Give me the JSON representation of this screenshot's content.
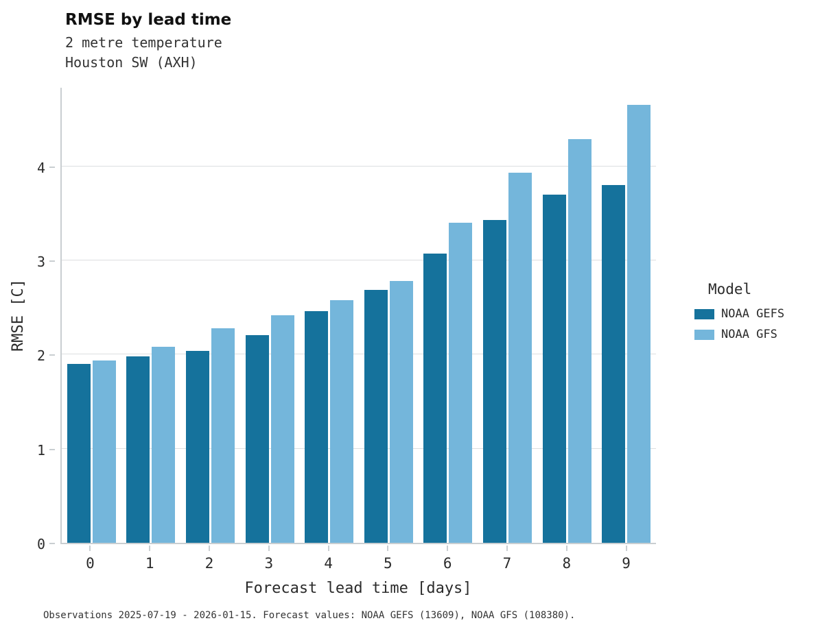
{
  "title": "RMSE by lead time",
  "subtitle_line1": "2 metre temperature",
  "subtitle_line2": "Houston SW (AXH)",
  "caption": "Observations 2025-07-19 - 2026-01-15. Forecast values: NOAA GEFS (13609), NOAA GFS (108380).",
  "legend": {
    "title": "Model",
    "entries": [
      {
        "label": "NOAA GEFS",
        "color": "#15729c"
      },
      {
        "label": "NOAA GFS",
        "color": "#74b6db"
      }
    ]
  },
  "colors": {
    "gefs": "#15729c",
    "gfs": "#74b6db",
    "grid": "#dcdee0",
    "axis": "#c9ced1",
    "text": "#2b2b2b"
  },
  "chart_data": {
    "type": "bar",
    "title": "RMSE by lead time",
    "subtitle": "2 metre temperature — Houston SW (AXH)",
    "xlabel": "Forecast lead time [days]",
    "ylabel": "RMSE [C]",
    "categories": [
      "0",
      "1",
      "2",
      "3",
      "4",
      "5",
      "6",
      "7",
      "8",
      "9"
    ],
    "series": [
      {
        "name": "NOAA GEFS",
        "color": "#15729c",
        "values": [
          1.9,
          1.98,
          2.04,
          2.21,
          2.46,
          2.69,
          3.07,
          3.43,
          3.7,
          3.8
        ]
      },
      {
        "name": "NOAA GFS",
        "color": "#74b6db",
        "values": [
          1.94,
          2.08,
          2.28,
          2.42,
          2.58,
          2.78,
          3.4,
          3.93,
          4.29,
          4.65
        ]
      }
    ],
    "yticks": [
      0,
      1,
      2,
      3,
      4
    ],
    "ylim": [
      0,
      4.85
    ],
    "grid": "horizontal",
    "legend_position": "right"
  }
}
